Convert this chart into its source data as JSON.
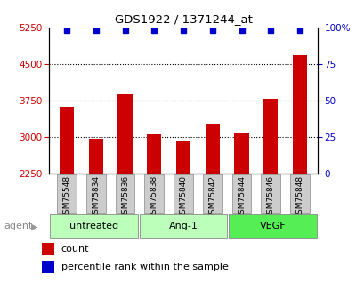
{
  "title": "GDS1922 / 1371244_at",
  "categories": [
    "GSM75548",
    "GSM75834",
    "GSM75836",
    "GSM75838",
    "GSM75840",
    "GSM75842",
    "GSM75844",
    "GSM75846",
    "GSM75848"
  ],
  "counts": [
    3620,
    2960,
    3880,
    3050,
    2920,
    3280,
    3080,
    3780,
    4680
  ],
  "ylim_left": [
    2250,
    5250
  ],
  "ylim_right": [
    0,
    100
  ],
  "yticks_left": [
    2250,
    3000,
    3750,
    4500,
    5250
  ],
  "yticks_right": [
    0,
    25,
    50,
    75,
    100
  ],
  "group_configs": [
    {
      "label": "untreated",
      "start": 0,
      "end": 3,
      "color": "#bbffbb"
    },
    {
      "label": "Ang-1",
      "start": 3,
      "end": 6,
      "color": "#bbffbb"
    },
    {
      "label": "VEGF",
      "start": 6,
      "end": 9,
      "color": "#55ee55"
    }
  ],
  "bar_color": "#cc0000",
  "blue_marker_color": "#0000cc",
  "grid_color": "#aaaaaa",
  "tick_label_color_left": "#cc0000",
  "tick_label_color_right": "#0000cc",
  "category_box_color": "#cccccc",
  "agent_label": "agent",
  "legend_count_label": "count",
  "legend_pct_label": "percentile rank within the sample",
  "bar_width": 0.5
}
